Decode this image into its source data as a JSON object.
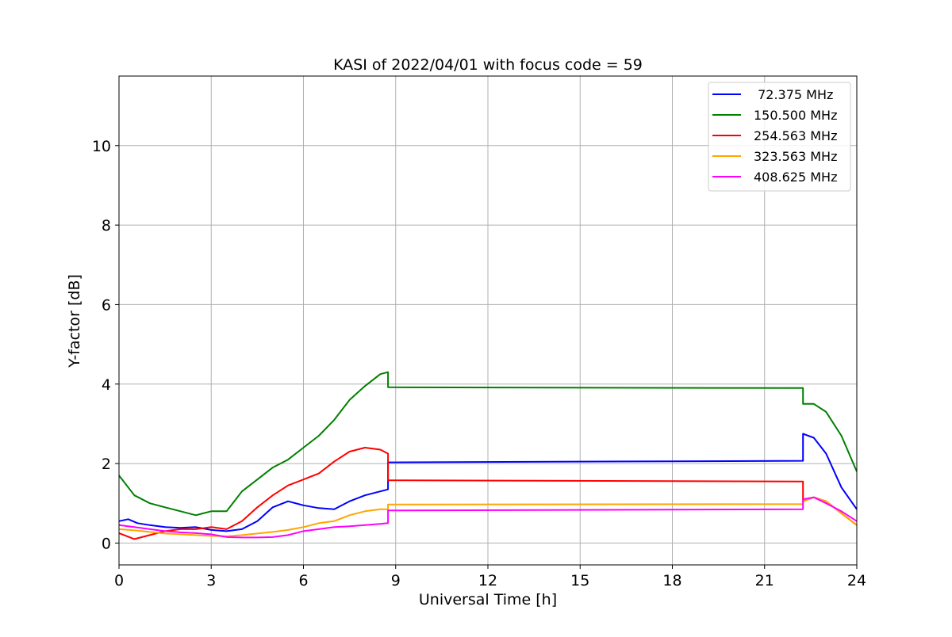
{
  "chart_data": {
    "type": "line",
    "title": "KASI of 2022/04/01 with focus code = 59",
    "xlabel": "Universal Time [h]",
    "ylabel": "Y-factor [dB]",
    "xlim": [
      0,
      24
    ],
    "ylim": [
      -0.55,
      11.75
    ],
    "xticks": [
      0,
      3,
      6,
      9,
      12,
      15,
      18,
      21,
      24
    ],
    "yticks": [
      0,
      2,
      4,
      6,
      8,
      10
    ],
    "grid": true,
    "legend_position": "top-right",
    "series": [
      {
        "name": " 72.375 MHz",
        "color": "#0000ff",
        "points": [
          [
            0,
            0.55
          ],
          [
            0.3,
            0.6
          ],
          [
            0.6,
            0.5
          ],
          [
            1,
            0.45
          ],
          [
            1.5,
            0.4
          ],
          [
            2,
            0.38
          ],
          [
            2.5,
            0.4
          ],
          [
            3,
            0.33
          ],
          [
            3.5,
            0.3
          ],
          [
            4,
            0.35
          ],
          [
            4.5,
            0.55
          ],
          [
            5,
            0.9
          ],
          [
            5.5,
            1.05
          ],
          [
            6,
            0.95
          ],
          [
            6.5,
            0.88
          ],
          [
            7,
            0.85
          ],
          [
            7.5,
            1.05
          ],
          [
            8,
            1.2
          ],
          [
            8.5,
            1.3
          ],
          [
            8.75,
            1.35
          ],
          [
            8.75,
            2.03
          ],
          [
            22.25,
            2.07
          ],
          [
            22.25,
            2.75
          ],
          [
            22.6,
            2.65
          ],
          [
            23,
            2.25
          ],
          [
            23.5,
            1.4
          ],
          [
            24,
            0.85
          ]
        ]
      },
      {
        "name": "150.500 MHz",
        "color": "#008000",
        "points": [
          [
            0,
            1.7
          ],
          [
            0.5,
            1.2
          ],
          [
            1,
            1.0
          ],
          [
            1.5,
            0.9
          ],
          [
            2,
            0.8
          ],
          [
            2.5,
            0.7
          ],
          [
            3,
            0.8
          ],
          [
            3.5,
            0.8
          ],
          [
            4,
            1.3
          ],
          [
            4.5,
            1.6
          ],
          [
            5,
            1.9
          ],
          [
            5.5,
            2.1
          ],
          [
            6,
            2.4
          ],
          [
            6.5,
            2.7
          ],
          [
            7,
            3.1
          ],
          [
            7.5,
            3.6
          ],
          [
            8,
            3.95
          ],
          [
            8.5,
            4.25
          ],
          [
            8.75,
            4.3
          ],
          [
            8.75,
            3.92
          ],
          [
            22.25,
            3.9
          ],
          [
            22.25,
            3.5
          ],
          [
            22.6,
            3.5
          ],
          [
            23,
            3.3
          ],
          [
            23.5,
            2.7
          ],
          [
            24,
            1.8
          ]
        ]
      },
      {
        "name": "254.563 MHz",
        "color": "#ff0000",
        "points": [
          [
            0,
            0.25
          ],
          [
            0.5,
            0.1
          ],
          [
            1,
            0.2
          ],
          [
            1.5,
            0.3
          ],
          [
            2,
            0.35
          ],
          [
            2.5,
            0.35
          ],
          [
            3,
            0.4
          ],
          [
            3.5,
            0.35
          ],
          [
            4,
            0.55
          ],
          [
            4.5,
            0.9
          ],
          [
            5,
            1.2
          ],
          [
            5.5,
            1.45
          ],
          [
            6,
            1.6
          ],
          [
            6.5,
            1.75
          ],
          [
            7,
            2.05
          ],
          [
            7.5,
            2.3
          ],
          [
            8,
            2.4
          ],
          [
            8.5,
            2.35
          ],
          [
            8.75,
            2.25
          ],
          [
            8.75,
            1.58
          ],
          [
            22.25,
            1.55
          ],
          [
            22.25,
            1.05
          ],
          [
            22.6,
            1.15
          ],
          [
            23,
            1.05
          ],
          [
            23.5,
            0.75
          ],
          [
            24,
            0.45
          ]
        ]
      },
      {
        "name": "323.563 MHz",
        "color": "#ffa500",
        "points": [
          [
            0,
            0.35
          ],
          [
            0.5,
            0.32
          ],
          [
            1,
            0.28
          ],
          [
            1.5,
            0.24
          ],
          [
            2,
            0.22
          ],
          [
            2.5,
            0.2
          ],
          [
            3,
            0.18
          ],
          [
            3.5,
            0.17
          ],
          [
            4,
            0.2
          ],
          [
            4.5,
            0.24
          ],
          [
            5,
            0.28
          ],
          [
            5.5,
            0.33
          ],
          [
            6,
            0.4
          ],
          [
            6.5,
            0.5
          ],
          [
            7,
            0.55
          ],
          [
            7.5,
            0.7
          ],
          [
            8,
            0.8
          ],
          [
            8.5,
            0.85
          ],
          [
            8.75,
            0.85
          ],
          [
            8.75,
            0.97
          ],
          [
            22.25,
            0.98
          ],
          [
            22.25,
            1.05
          ],
          [
            22.6,
            1.15
          ],
          [
            23,
            1.05
          ],
          [
            23.5,
            0.75
          ],
          [
            24,
            0.45
          ]
        ]
      },
      {
        "name": "408.625 MHz",
        "color": "#ff00ff",
        "points": [
          [
            0,
            0.45
          ],
          [
            0.5,
            0.4
          ],
          [
            1,
            0.35
          ],
          [
            1.5,
            0.3
          ],
          [
            2,
            0.27
          ],
          [
            2.5,
            0.25
          ],
          [
            3,
            0.22
          ],
          [
            3.5,
            0.15
          ],
          [
            4,
            0.14
          ],
          [
            4.5,
            0.14
          ],
          [
            5,
            0.15
          ],
          [
            5.5,
            0.2
          ],
          [
            6,
            0.3
          ],
          [
            6.5,
            0.35
          ],
          [
            7,
            0.4
          ],
          [
            7.5,
            0.42
          ],
          [
            8,
            0.45
          ],
          [
            8.5,
            0.48
          ],
          [
            8.75,
            0.5
          ],
          [
            8.75,
            0.82
          ],
          [
            22.25,
            0.85
          ],
          [
            22.25,
            1.1
          ],
          [
            22.6,
            1.15
          ],
          [
            23,
            1.0
          ],
          [
            23.5,
            0.8
          ],
          [
            24,
            0.55
          ]
        ]
      }
    ]
  }
}
